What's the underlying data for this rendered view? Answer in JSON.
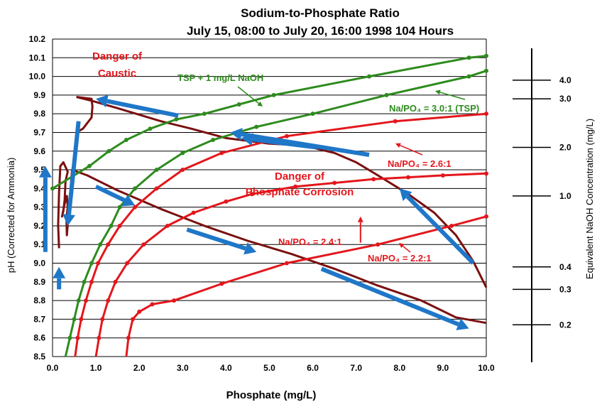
{
  "chart_data": {
    "type": "line",
    "title": "Sodium-to-Phosphate Ratio",
    "subtitle": "July 15, 08:00 to July 20, 16:00   1998  104 Hours",
    "xlabel": "Phosphate (mg/L)",
    "ylabel": "pH (Corrected for Ammonia)",
    "y2label": "Equivalent NaOH Concentration (mg/L)",
    "xlim": [
      0,
      10
    ],
    "ylim": [
      8.5,
      10.2
    ],
    "grid": "horizontal",
    "x_ticks": [
      "0.0",
      "1.0",
      "2.0",
      "3.0",
      "4.0",
      "5.0",
      "6.0",
      "7.0",
      "8.0",
      "9.0",
      "10.0"
    ],
    "y_ticks": [
      "8.5",
      "8.6",
      "8.7",
      "8.8",
      "8.9",
      "9.0",
      "9.1",
      "9.2",
      "9.3",
      "9.4",
      "9.5",
      "9.6",
      "9.7",
      "9.8",
      "9.9",
      "10.0",
      "10.1",
      "10.2"
    ],
    "naoh_scale": [
      {
        "label": "4.0",
        "ph": 9.98
      },
      {
        "label": "3.0",
        "ph": 9.88
      },
      {
        "label": "2.0",
        "ph": 9.62
      },
      {
        "label": "1.0",
        "ph": 9.36
      },
      {
        "label": "0.4",
        "ph": 8.98
      },
      {
        "label": "0.3",
        "ph": 8.86
      },
      {
        "label": "0.2",
        "ph": 8.67
      }
    ],
    "series": [
      {
        "label": "TSP + 1 mg/L NaOH",
        "color": "#2e8b1e",
        "x": [
          0.0,
          0.85,
          1.3,
          1.7,
          2.25,
          2.85,
          3.5,
          4.3,
          5.1,
          7.3,
          9.6,
          10.0
        ],
        "y": [
          9.4,
          9.52,
          9.6,
          9.66,
          9.72,
          9.77,
          9.8,
          9.85,
          9.9,
          10.0,
          10.1,
          10.11
        ]
      },
      {
        "label": "Na/PO₄ = 3.0:1 (TSP)",
        "color": "#2e8b1e",
        "x": [
          0.3,
          0.4,
          0.5,
          0.6,
          0.73,
          0.9,
          1.1,
          1.35,
          1.55,
          1.9,
          2.4,
          3.0,
          3.7,
          4.7,
          6.0,
          7.7,
          9.6,
          10.0
        ],
        "y": [
          8.5,
          8.6,
          8.7,
          8.8,
          8.9,
          9.0,
          9.1,
          9.2,
          9.3,
          9.4,
          9.5,
          9.59,
          9.66,
          9.73,
          9.8,
          9.9,
          10.0,
          10.03
        ]
      },
      {
        "label": "Na/PO₄ = 2.6:1",
        "color": "#e3171c",
        "x": [
          0.52,
          0.58,
          0.66,
          0.77,
          0.9,
          1.05,
          1.28,
          1.55,
          1.9,
          2.4,
          3.0,
          3.9,
          5.4,
          7.9,
          10.0
        ],
        "y": [
          8.5,
          8.6,
          8.7,
          8.8,
          8.9,
          9.0,
          9.1,
          9.2,
          9.3,
          9.4,
          9.5,
          9.59,
          9.68,
          9.76,
          9.8
        ]
      },
      {
        "label": "Na/PO₄ = 2.4:1",
        "color": "#e3171c",
        "x": [
          1.0,
          1.07,
          1.15,
          1.28,
          1.45,
          1.72,
          2.1,
          2.65,
          3.25,
          4.0,
          4.6,
          5.6,
          6.5,
          7.4,
          8.2,
          9.0,
          10.0
        ],
        "y": [
          8.5,
          8.6,
          8.7,
          8.8,
          8.9,
          9.0,
          9.1,
          9.2,
          9.27,
          9.33,
          9.37,
          9.41,
          9.43,
          9.45,
          9.46,
          9.47,
          9.48
        ]
      },
      {
        "label": "Na/PO₄ = 2.2:1",
        "color": "#e3171c",
        "x": [
          1.7,
          1.75,
          1.85,
          2.0,
          2.3,
          2.8,
          3.9,
          5.4,
          7.5,
          9.2,
          10.0
        ],
        "y": [
          8.5,
          8.6,
          8.7,
          8.74,
          8.78,
          8.8,
          8.89,
          9.0,
          9.1,
          9.2,
          9.25
        ]
      }
    ],
    "annotations": [
      {
        "text": "Danger of",
        "color": "#e3171c"
      },
      {
        "text": "Caustic",
        "color": "#e3171c"
      },
      {
        "text": "Danger of",
        "color": "#e3171c"
      },
      {
        "text": "Phosphate Corrosion",
        "color": "#e3171c"
      },
      {
        "text": "TSP + 1 mg/L NaOH",
        "color": "#2e8b1e"
      },
      {
        "text": "Na/PO₄ = 3.0:1 (TSP)",
        "color": "#2e8b1e"
      },
      {
        "text": "Na/PO₄ = 2.6:1",
        "color": "#e3171c"
      },
      {
        "text": "Na/PO₄ = 2.4:1",
        "color": "#e3171c"
      },
      {
        "text": "Na/PO₄ = 2.2:1",
        "color": "#e3171c"
      }
    ],
    "data_trace": {
      "color": "#7a1010",
      "points": [
        [
          0.15,
          9.08
        ],
        [
          0.13,
          9.2
        ],
        [
          0.15,
          9.38
        ],
        [
          0.18,
          9.52
        ],
        [
          0.25,
          9.54
        ],
        [
          0.35,
          9.49
        ],
        [
          0.3,
          9.44
        ],
        [
          0.28,
          9.34
        ],
        [
          0.25,
          9.28
        ],
        [
          0.22,
          9.25
        ],
        [
          0.28,
          9.32
        ],
        [
          0.33,
          9.36
        ],
        [
          0.35,
          9.3
        ],
        [
          0.32,
          9.24
        ],
        [
          0.33,
          9.15
        ],
        [
          0.45,
          9.5
        ],
        [
          0.8,
          9.47
        ],
        [
          1.5,
          9.39
        ],
        [
          2.5,
          9.29
        ],
        [
          3.5,
          9.2
        ],
        [
          4.5,
          9.12
        ],
        [
          5.5,
          9.05
        ],
        [
          6.5,
          8.97
        ],
        [
          7.5,
          8.88
        ],
        [
          8.5,
          8.8
        ],
        [
          9.3,
          8.71
        ],
        [
          10.0,
          8.68
        ]
      ],
      "points_upper": [
        [
          0.55,
          9.89
        ],
        [
          0.9,
          9.87
        ],
        [
          1.5,
          9.83
        ],
        [
          2.5,
          9.76
        ],
        [
          3.2,
          9.72
        ],
        [
          4.0,
          9.67
        ],
        [
          5.0,
          9.64
        ],
        [
          5.8,
          9.63
        ],
        [
          6.5,
          9.59
        ],
        [
          7.0,
          9.54
        ],
        [
          7.5,
          9.47
        ],
        [
          8.2,
          9.37
        ],
        [
          8.8,
          9.27
        ],
        [
          9.3,
          9.15
        ],
        [
          9.7,
          9.01
        ],
        [
          10.0,
          8.87
        ]
      ],
      "loop_link": [
        [
          0.55,
          9.89
        ],
        [
          0.9,
          9.88
        ],
        [
          0.92,
          9.84
        ],
        [
          0.9,
          9.78
        ],
        [
          0.7,
          9.72
        ],
        [
          0.55,
          9.7
        ]
      ]
    },
    "direction_arrows": {
      "color": "#1f77c8",
      "count": 11,
      "segments": [
        [
          0.15,
          8.86,
          0.15,
          8.98
        ],
        [
          -0.1,
          9.06,
          -0.1,
          9.52
        ],
        [
          0.6,
          9.76,
          0.35,
          9.2
        ],
        [
          1.0,
          9.41,
          1.9,
          9.31
        ],
        [
          2.9,
          9.79,
          1.0,
          9.88
        ],
        [
          3.1,
          9.18,
          4.7,
          9.06
        ],
        [
          7.3,
          9.58,
          4.1,
          9.7
        ],
        [
          9.7,
          9.0,
          8.0,
          9.4
        ],
        [
          6.1,
          9.62,
          4.35,
          9.67
        ],
        [
          6.2,
          8.97,
          9.6,
          8.65
        ],
        [
          7.1,
          9.11,
          7.1,
          9.25
        ]
      ]
    }
  }
}
